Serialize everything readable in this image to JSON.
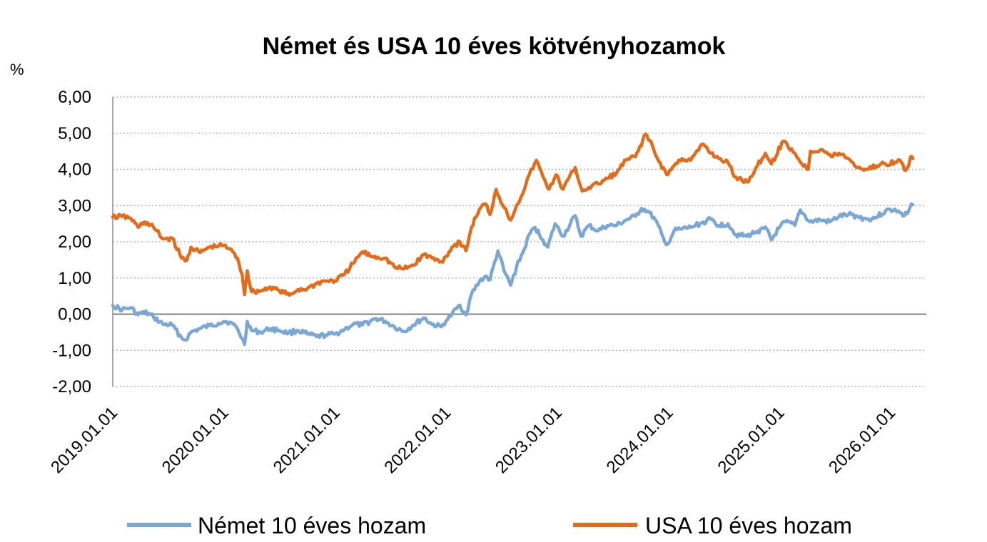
{
  "chart_data": {
    "type": "line",
    "title": "Német és USA 10 éves kötvényhozamok",
    "ylabel": "%",
    "xlabel": "",
    "ylim": [
      -2,
      6
    ],
    "y_ticks": [
      "6,00",
      "5,00",
      "4,00",
      "3,00",
      "2,00",
      "1,00",
      "0,00",
      "-1,00",
      "-2,00"
    ],
    "y_tick_values": [
      6,
      5,
      4,
      3,
      2,
      1,
      0,
      -1,
      -2
    ],
    "x_ticks": [
      "2019.01.01",
      "2020.01.01",
      "2021.01.01",
      "2022.01.01",
      "2023.01.01",
      "2024.01.01",
      "2025.01.01",
      "2026.01.01"
    ],
    "x_range": [
      "2019.01.01",
      "2026.03.15"
    ],
    "grid": true,
    "legend_position": "bottom",
    "series": [
      {
        "name": "Német 10 éves hozam",
        "color": "#7ba7d4",
        "points": [
          [
            "2019.01.01",
            0.24
          ],
          [
            "2019.02.01",
            0.12
          ],
          [
            "2019.03.01",
            0.18
          ],
          [
            "2019.03.25",
            -0.02
          ],
          [
            "2019.04.15",
            0.06
          ],
          [
            "2019.05.15",
            -0.08
          ],
          [
            "2019.06.15",
            -0.28
          ],
          [
            "2019.07.15",
            -0.3
          ],
          [
            "2019.08.15",
            -0.65
          ],
          [
            "2019.08.28",
            -0.72
          ],
          [
            "2019.09.15",
            -0.5
          ],
          [
            "2019.10.15",
            -0.4
          ],
          [
            "2019.11.15",
            -0.32
          ],
          [
            "2019.12.15",
            -0.25
          ],
          [
            "2020.01.01",
            -0.2
          ],
          [
            "2020.01.20",
            -0.22
          ],
          [
            "2020.02.15",
            -0.4
          ],
          [
            "2020.03.09",
            -0.84
          ],
          [
            "2020.03.18",
            -0.2
          ],
          [
            "2020.04.01",
            -0.45
          ],
          [
            "2020.05.01",
            -0.5
          ],
          [
            "2020.06.01",
            -0.4
          ],
          [
            "2020.07.01",
            -0.45
          ],
          [
            "2020.08.01",
            -0.52
          ],
          [
            "2020.09.01",
            -0.45
          ],
          [
            "2020.10.01",
            -0.55
          ],
          [
            "2020.11.01",
            -0.62
          ],
          [
            "2020.12.01",
            -0.58
          ],
          [
            "2021.01.01",
            -0.55
          ],
          [
            "2021.02.01",
            -0.42
          ],
          [
            "2021.03.01",
            -0.28
          ],
          [
            "2021.04.01",
            -0.3
          ],
          [
            "2021.05.15",
            -0.12
          ],
          [
            "2021.06.15",
            -0.2
          ],
          [
            "2021.07.15",
            -0.35
          ],
          [
            "2021.08.15",
            -0.48
          ],
          [
            "2021.09.15",
            -0.3
          ],
          [
            "2021.10.20",
            -0.1
          ],
          [
            "2021.11.15",
            -0.28
          ],
          [
            "2021.12.15",
            -0.35
          ],
          [
            "2022.01.01",
            -0.18
          ],
          [
            "2022.01.20",
            0.0
          ],
          [
            "2022.02.15",
            0.25
          ],
          [
            "2022.03.07",
            -0.02
          ],
          [
            "2022.03.25",
            0.55
          ],
          [
            "2022.04.20",
            0.9
          ],
          [
            "2022.05.10",
            1.05
          ],
          [
            "2022.05.25",
            0.95
          ],
          [
            "2022.06.20",
            1.75
          ],
          [
            "2022.07.10",
            1.2
          ],
          [
            "2022.08.01",
            0.8
          ],
          [
            "2022.08.20",
            1.3
          ],
          [
            "2022.09.15",
            1.8
          ],
          [
            "2022.10.01",
            2.2
          ],
          [
            "2022.10.20",
            2.4
          ],
          [
            "2022.11.15",
            2.05
          ],
          [
            "2022.12.01",
            1.85
          ],
          [
            "2022.12.25",
            2.5
          ],
          [
            "2023.01.20",
            2.15
          ],
          [
            "2023.03.01",
            2.72
          ],
          [
            "2023.03.20",
            2.15
          ],
          [
            "2023.04.15",
            2.45
          ],
          [
            "2023.05.15",
            2.3
          ],
          [
            "2023.06.15",
            2.45
          ],
          [
            "2023.07.15",
            2.45
          ],
          [
            "2023.08.15",
            2.6
          ],
          [
            "2023.09.15",
            2.7
          ],
          [
            "2023.10.05",
            2.92
          ],
          [
            "2023.10.25",
            2.85
          ],
          [
            "2023.11.20",
            2.6
          ],
          [
            "2023.12.20",
            2.0
          ],
          [
            "2024.01.01",
            1.95
          ],
          [
            "2024.01.20",
            2.3
          ],
          [
            "2024.02.15",
            2.35
          ],
          [
            "2024.03.15",
            2.4
          ],
          [
            "2024.04.15",
            2.5
          ],
          [
            "2024.05.20",
            2.62
          ],
          [
            "2024.06.15",
            2.45
          ],
          [
            "2024.07.15",
            2.5
          ],
          [
            "2024.08.10",
            2.2
          ],
          [
            "2024.09.15",
            2.15
          ],
          [
            "2024.10.20",
            2.3
          ],
          [
            "2024.11.20",
            2.35
          ],
          [
            "2024.12.05",
            2.05
          ],
          [
            "2024.12.30",
            2.38
          ],
          [
            "2025.01.20",
            2.55
          ],
          [
            "2025.02.20",
            2.45
          ],
          [
            "2025.03.10",
            2.88
          ],
          [
            "2025.04.10",
            2.55
          ],
          [
            "2025.05.15",
            2.6
          ],
          [
            "2025.06.15",
            2.55
          ],
          [
            "2025.07.15",
            2.7
          ],
          [
            "2025.08.15",
            2.75
          ],
          [
            "2025.09.15",
            2.7
          ],
          [
            "2025.10.15",
            2.62
          ],
          [
            "2025.11.15",
            2.68
          ],
          [
            "2025.12.15",
            2.85
          ],
          [
            "2026.01.15",
            2.9
          ],
          [
            "2026.02.01",
            2.8
          ],
          [
            "2026.02.15",
            2.72
          ],
          [
            "2026.03.01",
            2.85
          ],
          [
            "2026.03.10",
            3.05
          ],
          [
            "2026.03.15",
            3.02
          ]
        ]
      },
      {
        "name": "USA 10 éves hozam",
        "color": "#e36c1a",
        "points": [
          [
            "2019.01.01",
            2.68
          ],
          [
            "2019.02.01",
            2.7
          ],
          [
            "2019.03.01",
            2.65
          ],
          [
            "2019.03.25",
            2.4
          ],
          [
            "2019.04.15",
            2.55
          ],
          [
            "2019.05.15",
            2.4
          ],
          [
            "2019.06.15",
            2.08
          ],
          [
            "2019.07.15",
            2.1
          ],
          [
            "2019.08.15",
            1.55
          ],
          [
            "2019.09.01",
            1.48
          ],
          [
            "2019.09.15",
            1.85
          ],
          [
            "2019.10.15",
            1.7
          ],
          [
            "2019.11.15",
            1.85
          ],
          [
            "2019.12.15",
            1.88
          ],
          [
            "2020.01.01",
            1.9
          ],
          [
            "2020.01.20",
            1.8
          ],
          [
            "2020.02.15",
            1.55
          ],
          [
            "2020.03.01",
            1.1
          ],
          [
            "2020.03.09",
            0.54
          ],
          [
            "2020.03.18",
            1.2
          ],
          [
            "2020.04.01",
            0.62
          ],
          [
            "2020.05.01",
            0.64
          ],
          [
            "2020.06.01",
            0.75
          ],
          [
            "2020.07.01",
            0.65
          ],
          [
            "2020.08.04",
            0.52
          ],
          [
            "2020.09.01",
            0.68
          ],
          [
            "2020.10.01",
            0.7
          ],
          [
            "2020.11.01",
            0.85
          ],
          [
            "2020.12.01",
            0.92
          ],
          [
            "2021.01.01",
            0.92
          ],
          [
            "2021.02.01",
            1.1
          ],
          [
            "2021.03.01",
            1.4
          ],
          [
            "2021.03.31",
            1.72
          ],
          [
            "2021.05.01",
            1.6
          ],
          [
            "2021.06.15",
            1.55
          ],
          [
            "2021.07.15",
            1.3
          ],
          [
            "2021.08.15",
            1.25
          ],
          [
            "2021.09.15",
            1.35
          ],
          [
            "2021.10.20",
            1.65
          ],
          [
            "2021.11.15",
            1.55
          ],
          [
            "2021.12.15",
            1.45
          ],
          [
            "2022.01.01",
            1.6
          ],
          [
            "2022.01.20",
            1.85
          ],
          [
            "2022.02.15",
            2.0
          ],
          [
            "2022.03.07",
            1.75
          ],
          [
            "2022.03.25",
            2.4
          ],
          [
            "2022.04.20",
            2.9
          ],
          [
            "2022.05.10",
            3.05
          ],
          [
            "2022.05.25",
            2.75
          ],
          [
            "2022.06.14",
            3.45
          ],
          [
            "2022.07.10",
            2.95
          ],
          [
            "2022.08.01",
            2.6
          ],
          [
            "2022.08.20",
            3.0
          ],
          [
            "2022.09.15",
            3.45
          ],
          [
            "2022.10.01",
            3.85
          ],
          [
            "2022.10.24",
            4.25
          ],
          [
            "2022.11.15",
            3.8
          ],
          [
            "2022.12.05",
            3.45
          ],
          [
            "2022.12.28",
            3.85
          ],
          [
            "2023.01.20",
            3.45
          ],
          [
            "2023.03.01",
            4.05
          ],
          [
            "2023.03.24",
            3.4
          ],
          [
            "2023.04.15",
            3.5
          ],
          [
            "2023.05.15",
            3.6
          ],
          [
            "2023.06.15",
            3.75
          ],
          [
            "2023.07.15",
            3.9
          ],
          [
            "2023.08.15",
            4.25
          ],
          [
            "2023.09.15",
            4.35
          ],
          [
            "2023.10.19",
            4.98
          ],
          [
            "2023.11.01",
            4.8
          ],
          [
            "2023.11.20",
            4.4
          ],
          [
            "2023.12.27",
            3.85
          ],
          [
            "2024.01.20",
            4.1
          ],
          [
            "2024.02.15",
            4.3
          ],
          [
            "2024.03.15",
            4.25
          ],
          [
            "2024.04.25",
            4.7
          ],
          [
            "2024.05.20",
            4.45
          ],
          [
            "2024.06.15",
            4.3
          ],
          [
            "2024.07.15",
            4.2
          ],
          [
            "2024.08.05",
            3.8
          ],
          [
            "2024.09.16",
            3.65
          ],
          [
            "2024.10.20",
            4.1
          ],
          [
            "2024.11.15",
            4.45
          ],
          [
            "2024.12.05",
            4.15
          ],
          [
            "2025.01.13",
            4.78
          ],
          [
            "2025.02.20",
            4.45
          ],
          [
            "2025.03.10",
            4.2
          ],
          [
            "2025.04.05",
            4.0
          ],
          [
            "2025.04.12",
            4.5
          ],
          [
            "2025.05.20",
            4.55
          ],
          [
            "2025.06.20",
            4.35
          ],
          [
            "2025.07.15",
            4.45
          ],
          [
            "2025.08.15",
            4.3
          ],
          [
            "2025.09.15",
            4.05
          ],
          [
            "2025.10.15",
            4.0
          ],
          [
            "2025.11.15",
            4.1
          ],
          [
            "2025.12.15",
            4.15
          ],
          [
            "2026.01.15",
            4.2
          ],
          [
            "2026.02.01",
            4.25
          ],
          [
            "2026.02.15",
            3.98
          ],
          [
            "2026.03.01",
            4.1
          ],
          [
            "2026.03.08",
            4.35
          ],
          [
            "2026.03.15",
            4.3
          ]
        ]
      }
    ]
  }
}
